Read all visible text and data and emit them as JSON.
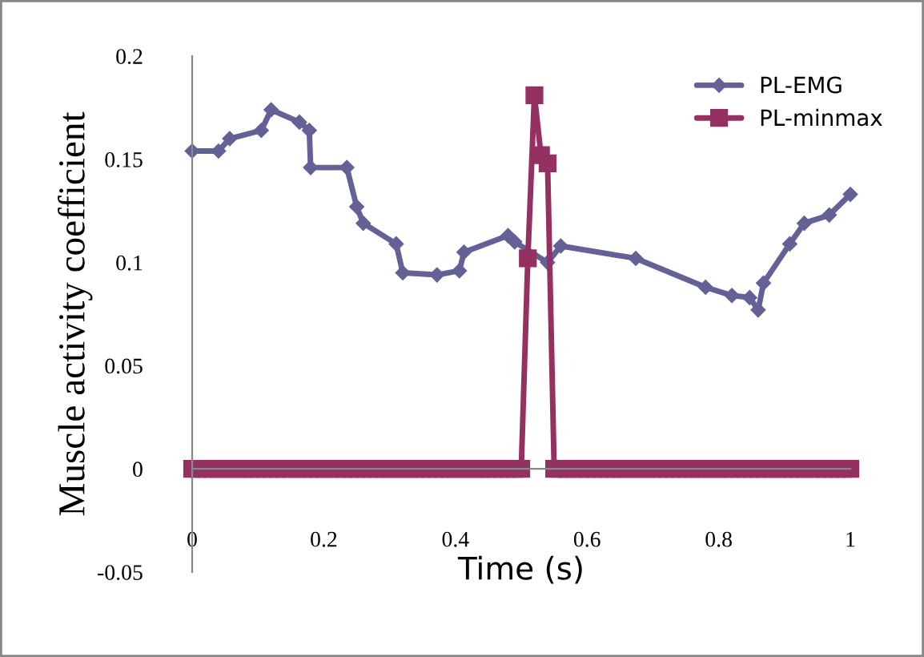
{
  "chart_data": {
    "type": "line",
    "xlabel": "Time (s)",
    "ylabel": "Muscle activity coefficient",
    "xlim": [
      0,
      1
    ],
    "ylim": [
      -0.05,
      0.2
    ],
    "xticks": [
      0,
      0.2,
      0.4,
      0.6,
      0.8,
      1
    ],
    "yticks": [
      -0.05,
      0,
      0.05,
      0.1,
      0.15,
      0.2
    ],
    "legend": "top right",
    "series": [
      {
        "name": "PL-EMG",
        "color": "#636196",
        "marker": "diamond",
        "x": [
          0,
          0.04,
          0.057,
          0.105,
          0.12,
          0.163,
          0.178,
          0.18,
          0.235,
          0.25,
          0.26,
          0.31,
          0.32,
          0.372,
          0.406,
          0.413,
          0.48,
          0.49,
          0.54,
          0.56,
          0.674,
          0.78,
          0.82,
          0.847,
          0.86,
          0.868,
          0.908,
          0.93,
          0.968,
          1.0
        ],
        "values": [
          0.154,
          0.154,
          0.16,
          0.164,
          0.174,
          0.168,
          0.164,
          0.146,
          0.146,
          0.127,
          0.119,
          0.109,
          0.095,
          0.094,
          0.096,
          0.105,
          0.113,
          0.11,
          0.1,
          0.108,
          0.102,
          0.088,
          0.084,
          0.083,
          0.077,
          0.09,
          0.109,
          0.119,
          0.123,
          0.133
        ]
      },
      {
        "name": "PL-minmax",
        "color": "#953162",
        "marker": "square",
        "x": [
          0,
          0.01,
          0.02,
          0.03,
          0.04,
          0.05,
          0.06,
          0.07,
          0.08,
          0.09,
          0.1,
          0.11,
          0.12,
          0.13,
          0.14,
          0.15,
          0.16,
          0.17,
          0.18,
          0.19,
          0.2,
          0.21,
          0.22,
          0.23,
          0.24,
          0.25,
          0.26,
          0.27,
          0.28,
          0.29,
          0.3,
          0.31,
          0.32,
          0.33,
          0.34,
          0.35,
          0.36,
          0.37,
          0.38,
          0.39,
          0.4,
          0.41,
          0.42,
          0.43,
          0.44,
          0.45,
          0.46,
          0.47,
          0.48,
          0.49,
          0.5,
          0.51,
          0.52,
          0.53,
          0.54,
          0.55,
          0.56,
          0.57,
          0.58,
          0.59,
          0.6,
          0.61,
          0.62,
          0.63,
          0.64,
          0.65,
          0.66,
          0.67,
          0.68,
          0.69,
          0.7,
          0.71,
          0.72,
          0.73,
          0.74,
          0.75,
          0.76,
          0.77,
          0.78,
          0.79,
          0.8,
          0.81,
          0.82,
          0.83,
          0.84,
          0.85,
          0.86,
          0.87,
          0.88,
          0.89,
          0.9,
          0.91,
          0.92,
          0.93,
          0.94,
          0.95,
          0.96,
          0.97,
          0.98,
          0.99,
          1.0
        ],
        "values": [
          0,
          0,
          0,
          0,
          0,
          0,
          0,
          0,
          0,
          0,
          0,
          0,
          0,
          0,
          0,
          0,
          0,
          0,
          0,
          0,
          0,
          0,
          0,
          0,
          0,
          0,
          0,
          0,
          0,
          0,
          0,
          0,
          0,
          0,
          0,
          0,
          0,
          0,
          0,
          0,
          0,
          0,
          0,
          0,
          0,
          0,
          0,
          0,
          0,
          0,
          0,
          0.102,
          0.181,
          0.152,
          0.148,
          0,
          0,
          0,
          0,
          0,
          0,
          0,
          0,
          0,
          0,
          0,
          0,
          0,
          0,
          0,
          0,
          0,
          0,
          0,
          0,
          0,
          0,
          0,
          0,
          0,
          0,
          0,
          0,
          0,
          0,
          0,
          0,
          0,
          0,
          0,
          0,
          0,
          0,
          0,
          0,
          0,
          0,
          0,
          0,
          0,
          0
        ]
      }
    ]
  }
}
